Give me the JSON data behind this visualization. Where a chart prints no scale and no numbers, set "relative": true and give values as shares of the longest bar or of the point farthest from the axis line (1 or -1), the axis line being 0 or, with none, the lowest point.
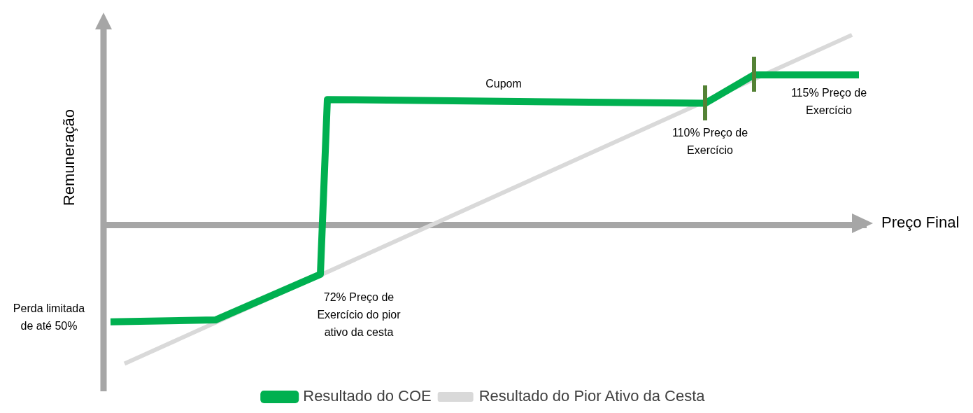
{
  "chart_data": {
    "type": "line",
    "relative": true,
    "ylabel": "Remuneração",
    "xlabel": "Preço Final",
    "legend": "bottom",
    "categories": [
      null,
      null,
      null,
      null,
      null,
      null,
      null,
      null,
      null,
      null,
      null,
      null,
      null,
      null,
      null,
      null,
      null,
      null,
      null,
      null,
      null,
      null,
      null,
      null,
      null,
      null,
      null,
      null,
      null,
      null,
      null,
      null,
      null,
      null,
      null,
      null,
      null,
      null,
      null,
      null,
      null,
      null,
      null,
      null,
      null,
      null,
      null,
      null,
      null,
      null,
      null,
      null,
      null,
      null,
      null,
      null,
      null,
      null,
      null,
      null,
      null,
      null,
      null,
      null,
      null,
      null,
      null,
      null,
      null,
      null,
      null,
      null,
      null,
      null,
      null,
      null,
      null,
      null,
      null,
      null,
      null,
      null,
      null,
      null,
      null,
      null,
      null,
      null,
      null,
      null,
      null,
      null,
      null,
      null,
      null,
      null,
      null,
      null,
      null,
      null,
      null,
      null,
      null,
      null,
      null,
      null,
      null,
      null,
      null,
      null
    ],
    "series": [
      {
        "name": "Resultado do COE",
        "color": "#00b050",
        "values": [
          null,
          -0.51,
          null,
          null,
          null,
          null,
          null,
          null,
          null,
          null,
          null,
          null,
          null,
          null,
          null,
          null,
          -0.5,
          null,
          null,
          null,
          null,
          null,
          null,
          null,
          null,
          null,
          null,
          null,
          null,
          null,
          null,
          -0.26,
          0.66,
          null,
          null,
          null,
          null,
          null,
          null,
          null,
          null,
          null,
          null,
          null,
          null,
          null,
          null,
          null,
          null,
          null,
          null,
          null,
          null,
          null,
          null,
          null,
          null,
          null,
          null,
          null,
          null,
          null,
          null,
          null,
          null,
          null,
          null,
          null,
          null,
          null,
          null,
          null,
          null,
          null,
          null,
          null,
          null,
          null,
          null,
          null,
          null,
          null,
          null,
          null,
          null,
          null,
          0.64,
          null,
          null,
          null,
          null,
          null,
          null,
          0.79,
          null,
          null,
          null,
          null,
          null,
          null,
          null,
          null,
          null,
          null,
          null,
          null,
          null,
          null,
          0.79,
          null
        ]
      },
      {
        "name": "Resultado do Pior Ativo da Cesta",
        "color": "#d9d9d9",
        "values": [
          null,
          null,
          null,
          -0.73,
          null,
          null,
          null,
          null,
          null,
          null,
          null,
          null,
          null,
          null,
          null,
          null,
          null,
          null,
          null,
          null,
          null,
          null,
          null,
          null,
          null,
          null,
          null,
          null,
          null,
          null,
          null,
          null,
          null,
          null,
          null,
          null,
          null,
          null,
          null,
          null,
          null,
          null,
          null,
          null,
          null,
          null,
          null,
          null,
          null,
          null,
          null,
          null,
          null,
          null,
          null,
          null,
          null,
          null,
          null,
          null,
          null,
          null,
          null,
          null,
          null,
          null,
          null,
          null,
          null,
          null,
          null,
          null,
          null,
          null,
          null,
          null,
          null,
          null,
          null,
          null,
          null,
          null,
          null,
          null,
          null,
          null,
          null,
          null,
          null,
          null,
          null,
          null,
          null,
          null,
          null,
          null,
          null,
          null,
          null,
          null,
          null,
          null,
          null,
          null,
          null,
          null,
          null,
          1,
          null,
          null
        ]
      }
    ],
    "annotations": [
      "Cupom",
      "110% Preço de\nExercício",
      "115% Preço de\nExercício",
      "72% Preço de\nExercício do pior\nativo da cesta",
      "Perda limitada\nde até 50%"
    ]
  }
}
